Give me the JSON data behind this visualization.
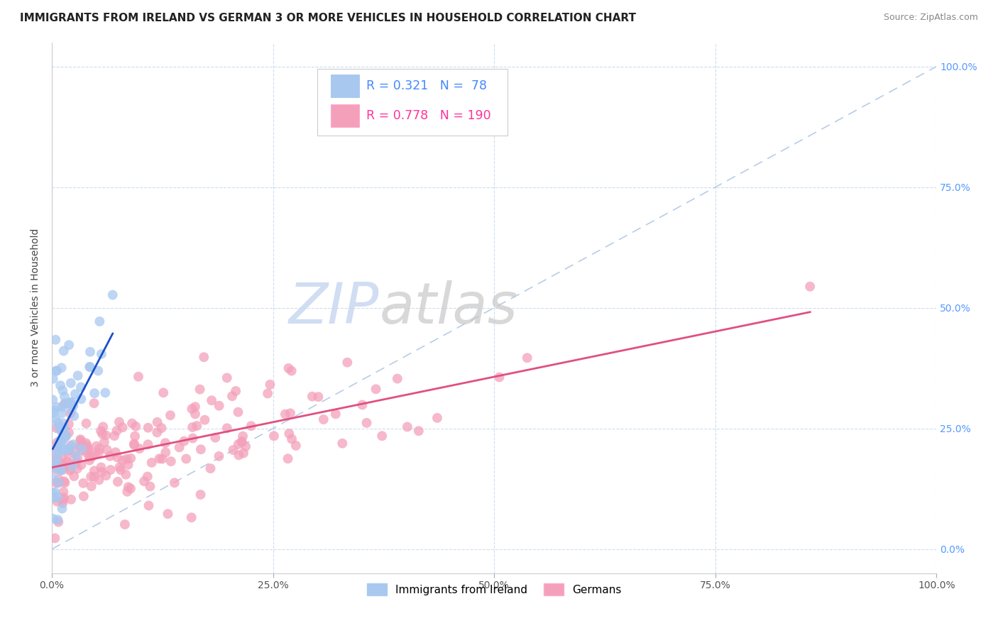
{
  "title": "IMMIGRANTS FROM IRELAND VS GERMAN 3 OR MORE VEHICLES IN HOUSEHOLD CORRELATION CHART",
  "source": "Source: ZipAtlas.com",
  "ylabel": "3 or more Vehicles in Household",
  "xlim": [
    0.0,
    1.0
  ],
  "ylim": [
    -0.05,
    1.05
  ],
  "xticks": [
    0.0,
    0.25,
    0.5,
    0.75,
    1.0
  ],
  "yticks": [
    0.0,
    0.25,
    0.5,
    0.75,
    1.0
  ],
  "legend_labels": [
    "Immigrants from Ireland",
    "Germans"
  ],
  "legend_R": [
    0.321,
    0.778
  ],
  "legend_N": [
    78,
    190
  ],
  "blue_color": "#A8C8F0",
  "pink_color": "#F4A0BA",
  "blue_line_color": "#1A50C8",
  "pink_line_color": "#E05080",
  "ref_line_color": "#B8CCE8",
  "background_color": "#FFFFFF",
  "grid_color": "#CCDDEE",
  "watermark_zip_color": "#C8D8F0",
  "watermark_atlas_color": "#C8C8C8",
  "title_fontsize": 11,
  "axis_label_fontsize": 10,
  "tick_fontsize": 10,
  "source_fontsize": 9,
  "right_tick_color": "#5599FF",
  "bottom_tick_color": "#555555"
}
